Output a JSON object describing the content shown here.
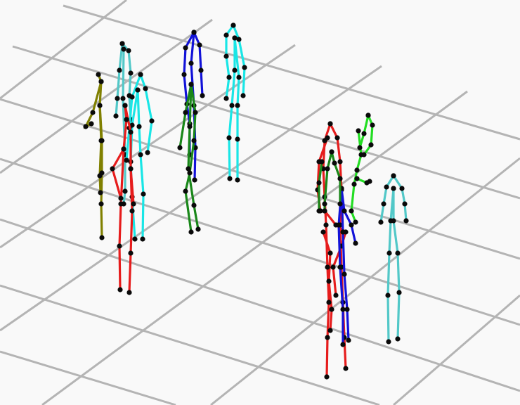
{
  "scene": {
    "background": "#f9f9f9",
    "grid_color": "#b4b4b4",
    "joint_color": "#0a0a0a",
    "skeletons": [
      {
        "name": "olive",
        "color": "#808000"
      },
      {
        "name": "turquoise-left",
        "color": "#52c8c8"
      },
      {
        "name": "cyan-left",
        "color": "#19e6e6"
      },
      {
        "name": "red-left",
        "color": "#e61c1c"
      },
      {
        "name": "blue-left",
        "color": "#1212d8"
      },
      {
        "name": "green-left",
        "color": "#198719"
      },
      {
        "name": "cyan-top",
        "color": "#19e6e6"
      },
      {
        "name": "red-right",
        "color": "#e61c1c"
      },
      {
        "name": "blue-right",
        "color": "#1212d8"
      },
      {
        "name": "dark-green-right",
        "color": "#198719"
      },
      {
        "name": "bright-green-right",
        "color": "#22dd22"
      },
      {
        "name": "turquoise-right",
        "color": "#52c8c8"
      }
    ]
  }
}
